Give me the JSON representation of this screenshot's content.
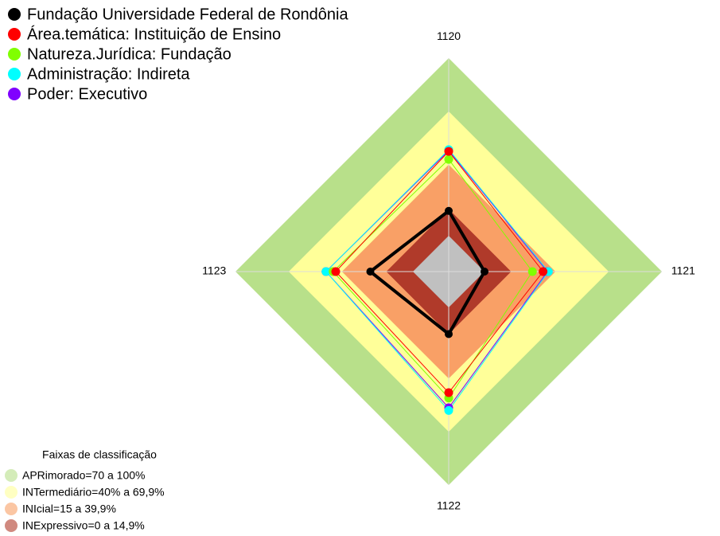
{
  "chart_data": {
    "type": "radar",
    "categories": [
      "1120",
      "1121",
      "1122",
      "1123"
    ],
    "rlim": [
      0,
      100
    ],
    "series": [
      {
        "name": "Fundação Universidade Federal de Rondônia",
        "color": "#000000",
        "values": [
          14,
          0,
          15,
          24
        ]
      },
      {
        "name": "Área.temática: Instituição de Ensino",
        "color": "#ff0000",
        "values": [
          47.5,
          33,
          48,
          43.5
        ]
      },
      {
        "name": "Natureza.Jurídica: Fundação",
        "color": "#80ff00",
        "values": [
          43,
          27,
          51,
          45
        ]
      },
      {
        "name": "Administração: Indireta",
        "color": "#00ffff",
        "values": [
          48.5,
          36,
          58,
          49
        ]
      },
      {
        "name": "Poder: Executivo",
        "color": "#8000ff",
        "values": [
          48,
          35.5,
          56.5,
          49
        ]
      }
    ],
    "bands_title": "Faixas de classificação",
    "bands": [
      {
        "label": "APRimorado=70 a 100%",
        "range": [
          70,
          100
        ],
        "color": "#b8e08a"
      },
      {
        "label": "INTermediário=40% a 69,9%",
        "range": [
          40,
          70
        ],
        "color": "#ffff99"
      },
      {
        "label": "INIcial=15 a 39,9%",
        "range": [
          15,
          40
        ],
        "color": "#f9a066"
      },
      {
        "label": "INExpressivo=0 a 14,9%",
        "range": [
          0,
          15
        ],
        "color": "#b03a2a"
      }
    ]
  }
}
